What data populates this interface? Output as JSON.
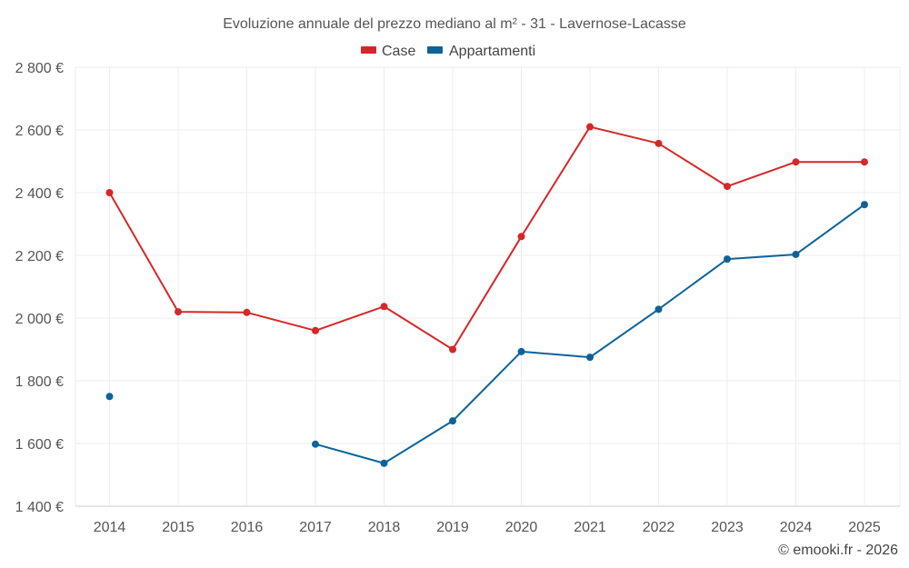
{
  "chart_data": {
    "type": "line",
    "title": "Evoluzione annuale del prezzo mediano al m² - 31 - Lavernose-Lacasse",
    "categories": [
      "2014",
      "2015",
      "2016",
      "2017",
      "2018",
      "2019",
      "2020",
      "2021",
      "2022",
      "2023",
      "2024",
      "2025"
    ],
    "ylim": [
      1400,
      2800
    ],
    "yticks": [
      1400,
      1600,
      1800,
      2000,
      2200,
      2400,
      2600,
      2800
    ],
    "ytick_labels": [
      "1 400 €",
      "1 600 €",
      "1 800 €",
      "2 000 €",
      "2 200 €",
      "2 400 €",
      "2 600 €",
      "2 800 €"
    ],
    "grid": true,
    "legend_position": "top-center",
    "series": [
      {
        "name": "Case",
        "color": "#d62728",
        "values": [
          2400,
          2020,
          2018,
          1960,
          2037,
          1900,
          2260,
          2610,
          2557,
          2420,
          2498,
          2498
        ]
      },
      {
        "name": "Appartamenti",
        "color": "#0b6399",
        "values": [
          1750,
          null,
          null,
          1598,
          1537,
          1672,
          1893,
          1875,
          2028,
          2188,
          2203,
          2362
        ]
      }
    ]
  },
  "credit": "© emooki.fr - 2026"
}
